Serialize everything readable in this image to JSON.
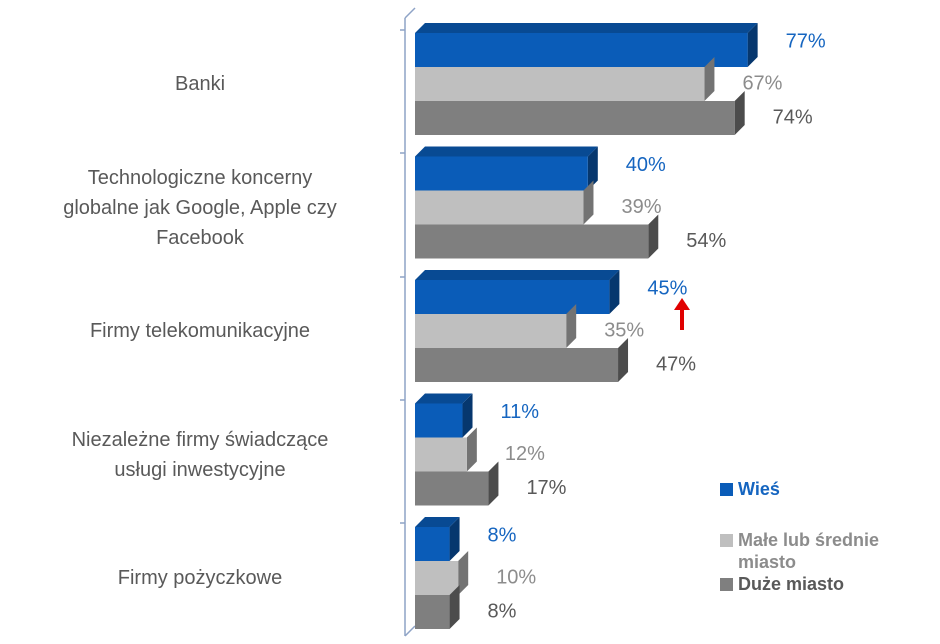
{
  "chart_data": {
    "type": "bar",
    "orientation": "horizontal",
    "style": "3d",
    "categories": [
      "Banki",
      "Technologiczne koncerny\nglobalne jak Google, Apple czy\nFacebook",
      "Firmy telekomunikacyjne",
      "Niezależne firmy świadczące\nusługi inwestycyjne",
      "Firmy pożyczkowe"
    ],
    "series": [
      {
        "name": "Wieś",
        "color": "#0a5cb8",
        "label_color": "#1565c0",
        "values": [
          77,
          40,
          45,
          11,
          8
        ],
        "value_labels": [
          "77%",
          "40%",
          "45%",
          "11%",
          "8%"
        ]
      },
      {
        "name": "Małe lub średnie miasto",
        "color": "#bfbfbf",
        "label_color": "#8c8c8c",
        "values": [
          67,
          39,
          35,
          12,
          10
        ],
        "value_labels": [
          "67%",
          "39%",
          "35%",
          "12%",
          "10%"
        ]
      },
      {
        "name": "Duże miasto",
        "color": "#7f7f7f",
        "label_color": "#595959",
        "values": [
          74,
          54,
          47,
          17,
          8
        ],
        "value_labels": [
          "74%",
          "54%",
          "47%",
          "17%",
          "8%"
        ]
      }
    ],
    "xlim": [
      0,
      100
    ],
    "legend": "lower right"
  }
}
